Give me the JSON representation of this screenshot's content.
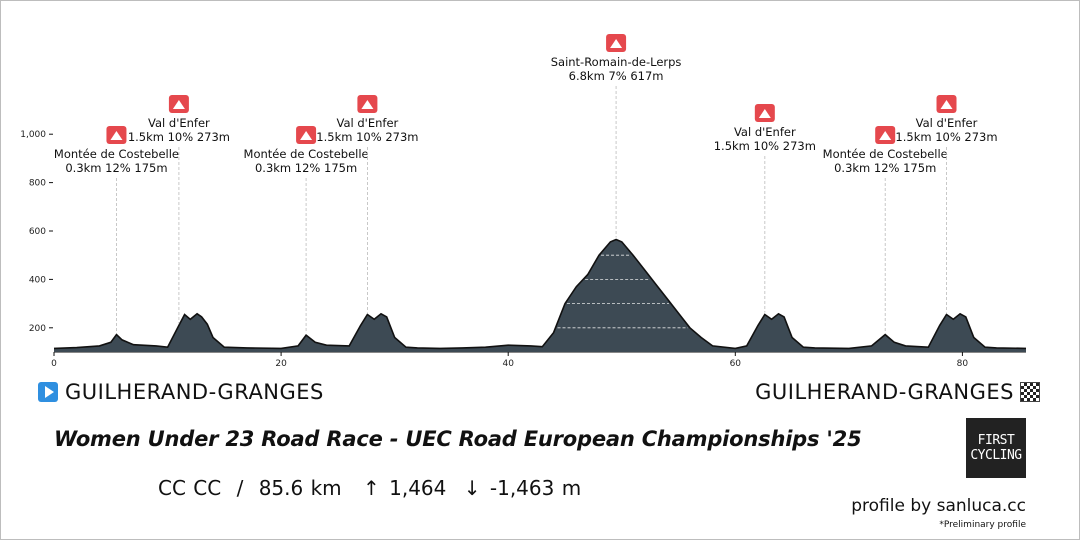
{
  "chart_data": {
    "type": "area",
    "xlabel": "",
    "ylabel": "",
    "xlim": [
      0,
      85.6
    ],
    "ylim": [
      100,
      1100
    ],
    "x_ticks": [
      0,
      20,
      40,
      60,
      80
    ],
    "y_ticks": [
      200,
      400,
      600,
      800,
      1000
    ],
    "y_tick_labels": [
      "200",
      "400",
      "600",
      "800",
      "1,000"
    ],
    "grid": false,
    "fill_color": "#3d4a54",
    "line_color": "#111111",
    "x": [
      0,
      2,
      4,
      5,
      5.5,
      6,
      7,
      9,
      10,
      11,
      11.5,
      12,
      12.6,
      13,
      13.5,
      14,
      15,
      17,
      20,
      21.5,
      22.2,
      23,
      24,
      26,
      27,
      27.6,
      28.2,
      28.8,
      29.3,
      30,
      31,
      32,
      34,
      36,
      38,
      40,
      42,
      43,
      44,
      45,
      46,
      47,
      48,
      49,
      49.5,
      50,
      51,
      52,
      53,
      54,
      55,
      56,
      57,
      58,
      60,
      61,
      62,
      62.6,
      63.2,
      63.8,
      64.3,
      65,
      66,
      67,
      70,
      72,
      73.2,
      74,
      75,
      77,
      78,
      78.6,
      79.2,
      79.8,
      80.3,
      81,
      82,
      83,
      85.6
    ],
    "y": [
      115,
      118,
      125,
      140,
      172,
      150,
      130,
      125,
      120,
      210,
      255,
      235,
      258,
      245,
      215,
      160,
      120,
      117,
      115,
      125,
      170,
      140,
      128,
      125,
      210,
      255,
      235,
      258,
      245,
      160,
      120,
      117,
      115,
      117,
      120,
      128,
      125,
      122,
      180,
      300,
      370,
      420,
      500,
      555,
      565,
      555,
      500,
      440,
      380,
      320,
      260,
      200,
      160,
      125,
      115,
      125,
      210,
      255,
      235,
      258,
      245,
      160,
      120,
      117,
      115,
      125,
      172,
      140,
      125,
      120,
      210,
      255,
      235,
      258,
      245,
      160,
      120,
      117,
      115
    ],
    "climbs": [
      {
        "km": 5.5,
        "elev": 172,
        "name": "Montée de Costebelle",
        "stats": "0.3km 12% 175m",
        "label_km": 5.5,
        "label_level": 0
      },
      {
        "km": 11,
        "elev": 210,
        "name": "Val d'Enfer",
        "stats": "1.5km 10% 273m",
        "label_km": 11,
        "label_level": 1
      },
      {
        "km": 22.2,
        "elev": 170,
        "name": "Montée de Costebelle",
        "stats": "0.3km 12% 175m",
        "label_km": 22.2,
        "label_level": 0
      },
      {
        "km": 27.6,
        "elev": 255,
        "name": "Val d'Enfer",
        "stats": "1.5km 10% 273m",
        "label_km": 27.6,
        "label_level": 1
      },
      {
        "km": 49.5,
        "elev": 565,
        "name": "Saint-Romain-de-Lerps",
        "stats": "6.8km 7% 617m",
        "label_km": 49.5,
        "label_level": 2
      },
      {
        "km": 62.6,
        "elev": 255,
        "name": "Val d'Enfer",
        "stats": "1.5km 10% 273m",
        "label_km": 62.6,
        "label_level": 0.5
      },
      {
        "km": 73.2,
        "elev": 172,
        "name": "Montée de Costebelle",
        "stats": "0.3km 12% 175m",
        "label_km": 73.2,
        "label_level": 0
      },
      {
        "km": 78.6,
        "elev": 255,
        "name": "Val d'Enfer",
        "stats": "1.5km 10% 273m",
        "label_km": 78.6,
        "label_level": 1
      }
    ]
  },
  "start_location": "GUILHERAND-GRANGES",
  "finish_location": "GUILHERAND-GRANGES",
  "race_title": "Women Under 23 Road Race - UEC Road European Championships '25",
  "stats": {
    "classification": "CC CC",
    "separator": "/",
    "distance": "85.6 km",
    "ascent_arrow": "↑",
    "ascent": "1,464",
    "descent_arrow": "↓",
    "descent": "-1,463 m"
  },
  "logo": {
    "line1": "FIRST",
    "line2": "CYCLING"
  },
  "credit": "profile by sanluca.cc",
  "note": "*Preliminary profile",
  "colors": {
    "climb_marker": "#e5484d",
    "start_icon": "#2f8fe0"
  },
  "icons": {
    "climb": "mountain-icon",
    "start": "play-icon",
    "finish": "checkered-flag-icon"
  }
}
